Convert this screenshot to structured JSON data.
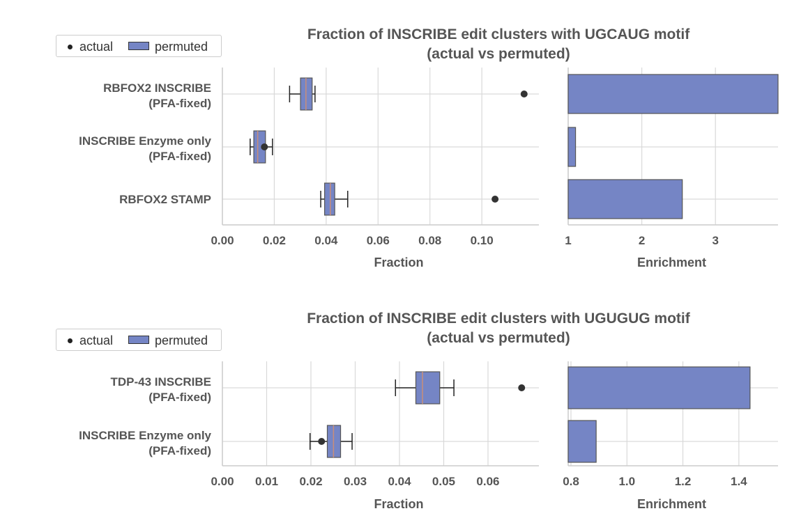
{
  "colors": {
    "box_fill": "#7585c5",
    "bar_fill": "#7585c5",
    "median": "#c98e79",
    "point": "#333333",
    "grid": "#d9d9d9",
    "text": "#555555"
  },
  "chart_data": [
    {
      "type": "box",
      "title": "Fraction of INSCRIBE edit clusters with UGCAUG motif\n(actual vs permuted)",
      "legend": {
        "position": "upper-left",
        "entries": [
          "actual",
          "permuted"
        ]
      },
      "grid": true,
      "categories": [
        [
          "RBFOX2 INSCRIBE",
          "(PFA-fixed)"
        ],
        [
          "INSCRIBE Enzyme only",
          "(PFA-fixed)"
        ],
        [
          "RBFOX2 STAMP"
        ]
      ],
      "left": {
        "xlabel": "Fraction",
        "xlim": [
          0.0,
          0.122
        ],
        "ticks": [
          0.0,
          0.02,
          0.04,
          0.06,
          0.08,
          0.1
        ],
        "tick_labels": [
          "0.00",
          "0.02",
          "0.04",
          "0.06",
          "0.08",
          "0.10"
        ],
        "permuted_boxes": [
          {
            "whisker_low": 0.0259,
            "q1": 0.0301,
            "median": 0.0322,
            "q3": 0.0346,
            "whisker_high": 0.0357
          },
          {
            "whisker_low": 0.0107,
            "q1": 0.0121,
            "median": 0.0136,
            "q3": 0.0166,
            "whisker_high": 0.0193
          },
          {
            "whisker_low": 0.0379,
            "q1": 0.0394,
            "median": 0.0416,
            "q3": 0.0433,
            "whisker_high": 0.0483
          }
        ],
        "actual": [
          0.1163,
          0.0162,
          0.1051
        ]
      },
      "right": {
        "type": "bar",
        "xlabel": "Enrichment",
        "xlim": [
          1.0,
          3.85
        ],
        "ticks": [
          1,
          2,
          3
        ],
        "tick_labels": [
          "1",
          "2",
          "3"
        ],
        "values": [
          3.85,
          1.1,
          2.55
        ]
      }
    },
    {
      "type": "box",
      "title": "Fraction of INSCRIBE edit clusters with UGUGUG motif\n(actual vs permuted)",
      "legend": {
        "position": "upper-left",
        "entries": [
          "actual",
          "permuted"
        ]
      },
      "grid": true,
      "categories": [
        [
          "TDP-43 INSCRIBE",
          "(PFA-fixed)"
        ],
        [
          "INSCRIBE Enzyme only",
          "(PFA-fixed)"
        ]
      ],
      "left": {
        "xlabel": "Fraction",
        "xlim": [
          0.0,
          0.0715
        ],
        "ticks": [
          0.0,
          0.01,
          0.02,
          0.03,
          0.04,
          0.05,
          0.06
        ],
        "tick_labels": [
          "0.00",
          "0.01",
          "0.02",
          "0.03",
          "0.04",
          "0.05",
          "0.06"
        ],
        "permuted_boxes": [
          {
            "whisker_low": 0.0391,
            "q1": 0.0437,
            "median": 0.0452,
            "q3": 0.0491,
            "whisker_high": 0.0523
          },
          {
            "whisker_low": 0.0198,
            "q1": 0.0237,
            "median": 0.0251,
            "q3": 0.0267,
            "whisker_high": 0.0293
          }
        ],
        "actual": [
          0.0676,
          0.0224
        ]
      },
      "right": {
        "type": "bar",
        "xlabel": "Enrichment",
        "xlim": [
          0.79,
          1.54
        ],
        "ticks": [
          0.8,
          1.0,
          1.2,
          1.4
        ],
        "tick_labels": [
          "0.8",
          "1.0",
          "1.2",
          "1.4"
        ],
        "values": [
          1.44,
          0.89
        ]
      }
    }
  ]
}
